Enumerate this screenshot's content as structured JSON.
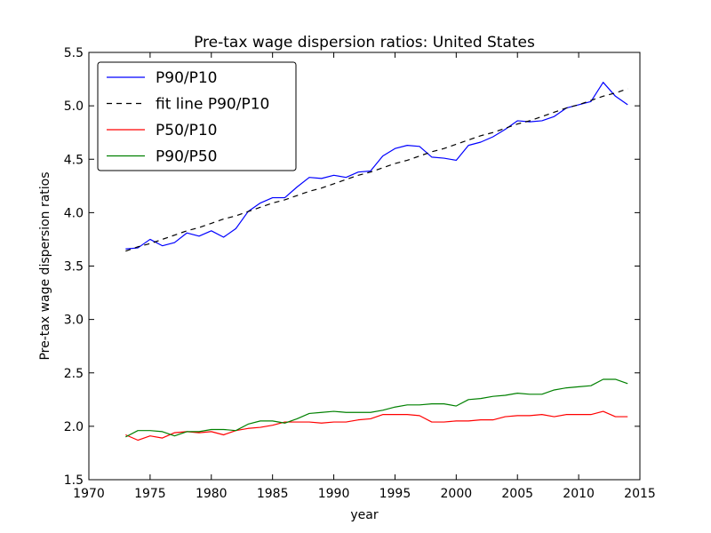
{
  "chart_data": {
    "type": "line",
    "title": "Pre-tax wage dispersion ratios: United States",
    "xlabel": "year",
    "ylabel": "Pre-tax wage dispersion ratios",
    "xlim": [
      1970,
      2015
    ],
    "ylim": [
      1.5,
      5.5
    ],
    "xticks": [
      "1970",
      "1975",
      "1980",
      "1985",
      "1990",
      "1995",
      "2000",
      "2005",
      "2010",
      "2015"
    ],
    "yticks": [
      "1.5",
      "2.0",
      "2.5",
      "3.0",
      "3.5",
      "4.0",
      "4.5",
      "5.0",
      "5.5"
    ],
    "grid": false,
    "legend_position": "upper-left",
    "x": [
      1973,
      1974,
      1975,
      1976,
      1977,
      1978,
      1979,
      1980,
      1981,
      1982,
      1983,
      1984,
      1985,
      1986,
      1987,
      1988,
      1989,
      1990,
      1991,
      1992,
      1993,
      1994,
      1995,
      1996,
      1997,
      1998,
      1999,
      2000,
      2001,
      2002,
      2003,
      2004,
      2005,
      2006,
      2007,
      2008,
      2009,
      2010,
      2011,
      2012,
      2013,
      2014
    ],
    "series": [
      {
        "name": "P90/P10",
        "color": "#0000ff",
        "style": "solid",
        "values": [
          3.66,
          3.67,
          3.75,
          3.69,
          3.72,
          3.81,
          3.78,
          3.83,
          3.77,
          3.85,
          4.01,
          4.09,
          4.14,
          4.14,
          4.24,
          4.33,
          4.32,
          4.35,
          4.33,
          4.38,
          4.39,
          4.53,
          4.6,
          4.63,
          4.62,
          4.52,
          4.51,
          4.49,
          4.63,
          4.66,
          4.71,
          4.78,
          4.86,
          4.85,
          4.86,
          4.9,
          4.98,
          5.01,
          5.04,
          5.22,
          5.09,
          5.01
        ]
      },
      {
        "name": "fit line P90/P10",
        "color": "#000000",
        "style": "dashed",
        "values": [
          3.64,
          3.68,
          3.71,
          3.75,
          3.79,
          3.83,
          3.86,
          3.9,
          3.94,
          3.97,
          4.01,
          4.05,
          4.09,
          4.12,
          4.16,
          4.2,
          4.23,
          4.27,
          4.31,
          4.35,
          4.38,
          4.42,
          4.46,
          4.49,
          4.53,
          4.57,
          4.6,
          4.64,
          4.68,
          4.72,
          4.75,
          4.79,
          4.83,
          4.86,
          4.9,
          4.94,
          4.98,
          5.01,
          5.05,
          5.09,
          5.12,
          5.16
        ]
      },
      {
        "name": "P50/P10",
        "color": "#ff0000",
        "style": "solid",
        "values": [
          1.92,
          1.87,
          1.91,
          1.89,
          1.94,
          1.95,
          1.94,
          1.95,
          1.92,
          1.96,
          1.98,
          1.99,
          2.01,
          2.04,
          2.04,
          2.04,
          2.03,
          2.04,
          2.04,
          2.06,
          2.07,
          2.11,
          2.11,
          2.11,
          2.1,
          2.04,
          2.04,
          2.05,
          2.05,
          2.06,
          2.06,
          2.09,
          2.1,
          2.1,
          2.11,
          2.09,
          2.11,
          2.11,
          2.11,
          2.14,
          2.09,
          2.09
        ]
      },
      {
        "name": "P90/P50",
        "color": "#008000",
        "style": "solid",
        "values": [
          1.9,
          1.96,
          1.96,
          1.95,
          1.91,
          1.95,
          1.95,
          1.97,
          1.97,
          1.96,
          2.02,
          2.05,
          2.05,
          2.03,
          2.07,
          2.12,
          2.13,
          2.14,
          2.13,
          2.13,
          2.13,
          2.15,
          2.18,
          2.2,
          2.2,
          2.21,
          2.21,
          2.19,
          2.25,
          2.26,
          2.28,
          2.29,
          2.31,
          2.3,
          2.3,
          2.34,
          2.36,
          2.37,
          2.38,
          2.44,
          2.44,
          2.4
        ]
      }
    ]
  }
}
